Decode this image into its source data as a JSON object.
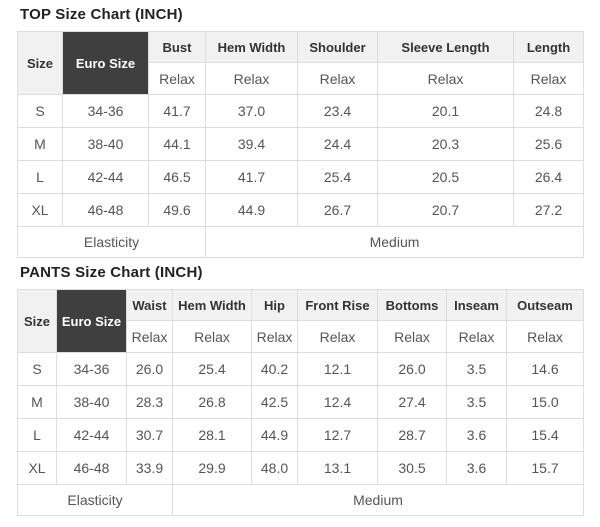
{
  "colors": {
    "dark_cell_bg": "#3f3f3f",
    "dark_cell_text": "#ffffff",
    "header_bg": "#f1f1f1",
    "border": "#dddddd",
    "title_text": "#222222",
    "header_text": "#333333",
    "cell_text": "#555555",
    "page_bg": "#ffffff"
  },
  "charts": [
    {
      "id": "top",
      "title": "TOP Size Chart (INCH)",
      "size_header": "Size",
      "euro_header": "Euro Size",
      "fit_label": "Relax",
      "measures": [
        "Bust",
        "Hem Width",
        "Shoulder",
        "Sleeve Length",
        "Length"
      ],
      "rows": [
        {
          "size": "S",
          "euro_size": "34-36",
          "values": [
            "41.7",
            "37.0",
            "23.4",
            "20.1",
            "24.8"
          ]
        },
        {
          "size": "M",
          "euro_size": "38-40",
          "values": [
            "44.1",
            "39.4",
            "24.4",
            "20.3",
            "25.6"
          ]
        },
        {
          "size": "L",
          "euro_size": "42-44",
          "values": [
            "46.5",
            "41.7",
            "25.4",
            "20.5",
            "26.4"
          ]
        },
        {
          "size": "XL",
          "euro_size": "46-48",
          "values": [
            "49.6",
            "44.9",
            "26.7",
            "20.7",
            "27.2"
          ]
        }
      ],
      "footer": {
        "label": "Elasticity",
        "value": "Medium"
      }
    },
    {
      "id": "pants",
      "title": "PANTS Size Chart (INCH)",
      "size_header": "Size",
      "euro_header": "Euro Size",
      "fit_label": "Relax",
      "measures": [
        "Waist",
        "Hem Width",
        "Hip",
        "Front Rise",
        "Bottoms",
        "Inseam",
        "Outseam"
      ],
      "rows": [
        {
          "size": "S",
          "euro_size": "34-36",
          "values": [
            "26.0",
            "25.4",
            "40.2",
            "12.1",
            "26.0",
            "3.5",
            "14.6"
          ]
        },
        {
          "size": "M",
          "euro_size": "38-40",
          "values": [
            "28.3",
            "26.8",
            "42.5",
            "12.4",
            "27.4",
            "3.5",
            "15.0"
          ]
        },
        {
          "size": "L",
          "euro_size": "42-44",
          "values": [
            "30.7",
            "28.1",
            "44.9",
            "12.7",
            "28.7",
            "3.6",
            "15.4"
          ]
        },
        {
          "size": "XL",
          "euro_size": "46-48",
          "values": [
            "33.9",
            "29.9",
            "48.0",
            "13.1",
            "30.5",
            "3.6",
            "15.7"
          ]
        }
      ],
      "footer": {
        "label": "Elasticity",
        "value": "Medium"
      }
    }
  ],
  "chart_data": [
    {
      "type": "table",
      "title": "TOP Size Chart (INCH)",
      "columns": [
        "Size",
        "Euro Size",
        "Bust (Relax)",
        "Hem Width (Relax)",
        "Shoulder (Relax)",
        "Sleeve Length (Relax)",
        "Length (Relax)"
      ],
      "rows": [
        [
          "S",
          "34-36",
          41.7,
          37.0,
          23.4,
          20.1,
          24.8
        ],
        [
          "M",
          "38-40",
          44.1,
          39.4,
          24.4,
          20.3,
          25.6
        ],
        [
          "L",
          "42-44",
          46.5,
          41.7,
          25.4,
          20.5,
          26.4
        ],
        [
          "XL",
          "46-48",
          49.6,
          44.9,
          26.7,
          20.7,
          27.2
        ]
      ],
      "footer": [
        "Elasticity",
        "Medium"
      ]
    },
    {
      "type": "table",
      "title": "PANTS Size Chart (INCH)",
      "columns": [
        "Size",
        "Euro Size",
        "Waist (Relax)",
        "Hem Width (Relax)",
        "Hip (Relax)",
        "Front Rise (Relax)",
        "Bottoms (Relax)",
        "Inseam (Relax)",
        "Outseam (Relax)"
      ],
      "rows": [
        [
          "S",
          "34-36",
          26.0,
          25.4,
          40.2,
          12.1,
          26.0,
          3.5,
          14.6
        ],
        [
          "M",
          "38-40",
          28.3,
          26.8,
          42.5,
          12.4,
          27.4,
          3.5,
          15.0
        ],
        [
          "L",
          "42-44",
          30.7,
          28.1,
          44.9,
          12.7,
          28.7,
          3.6,
          15.4
        ],
        [
          "XL",
          "46-48",
          33.9,
          29.9,
          48.0,
          13.1,
          30.5,
          3.6,
          15.7
        ]
      ],
      "footer": [
        "Elasticity",
        "Medium"
      ]
    }
  ]
}
